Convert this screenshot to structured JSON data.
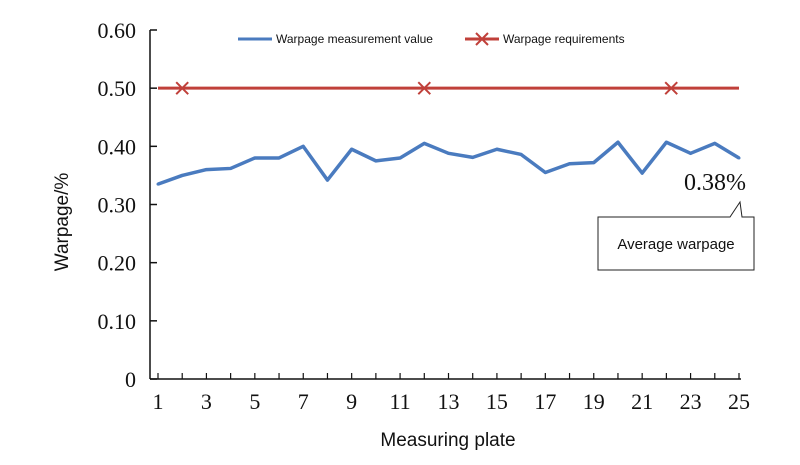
{
  "chart_data": {
    "type": "line",
    "xlabel": "Measuring plate",
    "ylabel": "Warpage/%",
    "x": [
      1,
      2,
      3,
      4,
      5,
      6,
      7,
      8,
      9,
      10,
      11,
      12,
      13,
      14,
      15,
      16,
      17,
      18,
      19,
      20,
      21,
      22,
      23,
      24,
      25
    ],
    "xticks": [
      "1",
      "3",
      "5",
      "7",
      "9",
      "11",
      "13",
      "15",
      "17",
      "19",
      "21",
      "23",
      "25"
    ],
    "yticks": [
      "0",
      "0.10",
      "0.20",
      "0.30",
      "0.40",
      "0.50",
      "0.60"
    ],
    "ylim": [
      0,
      0.6
    ],
    "xlim": [
      1,
      25
    ],
    "legend": "top",
    "series": [
      {
        "name": "Warpage measurement value",
        "color": "#4a7bbf",
        "marker": "none",
        "values": [
          0.335,
          0.35,
          0.36,
          0.362,
          0.38,
          0.38,
          0.4,
          0.342,
          0.395,
          0.375,
          0.38,
          0.405,
          0.388,
          0.381,
          0.395,
          0.386,
          0.355,
          0.37,
          0.372,
          0.407,
          0.354,
          0.407,
          0.388,
          0.405,
          0.38
        ]
      },
      {
        "name": "Warpage requirements",
        "color": "#c0403a",
        "marker": "x",
        "values": [
          0.5,
          0.5,
          0.5,
          0.5,
          0.5,
          0.5,
          0.5,
          0.5,
          0.5,
          0.5,
          0.5,
          0.5,
          0.5,
          0.5,
          0.5,
          0.5,
          0.5,
          0.5,
          0.5,
          0.5,
          0.5,
          0.5,
          0.5,
          0.5,
          0.5
        ],
        "marker_x": [
          2,
          12,
          22.2
        ]
      }
    ],
    "annotation": {
      "value": "0.38%",
      "label": "Average warpage"
    }
  }
}
